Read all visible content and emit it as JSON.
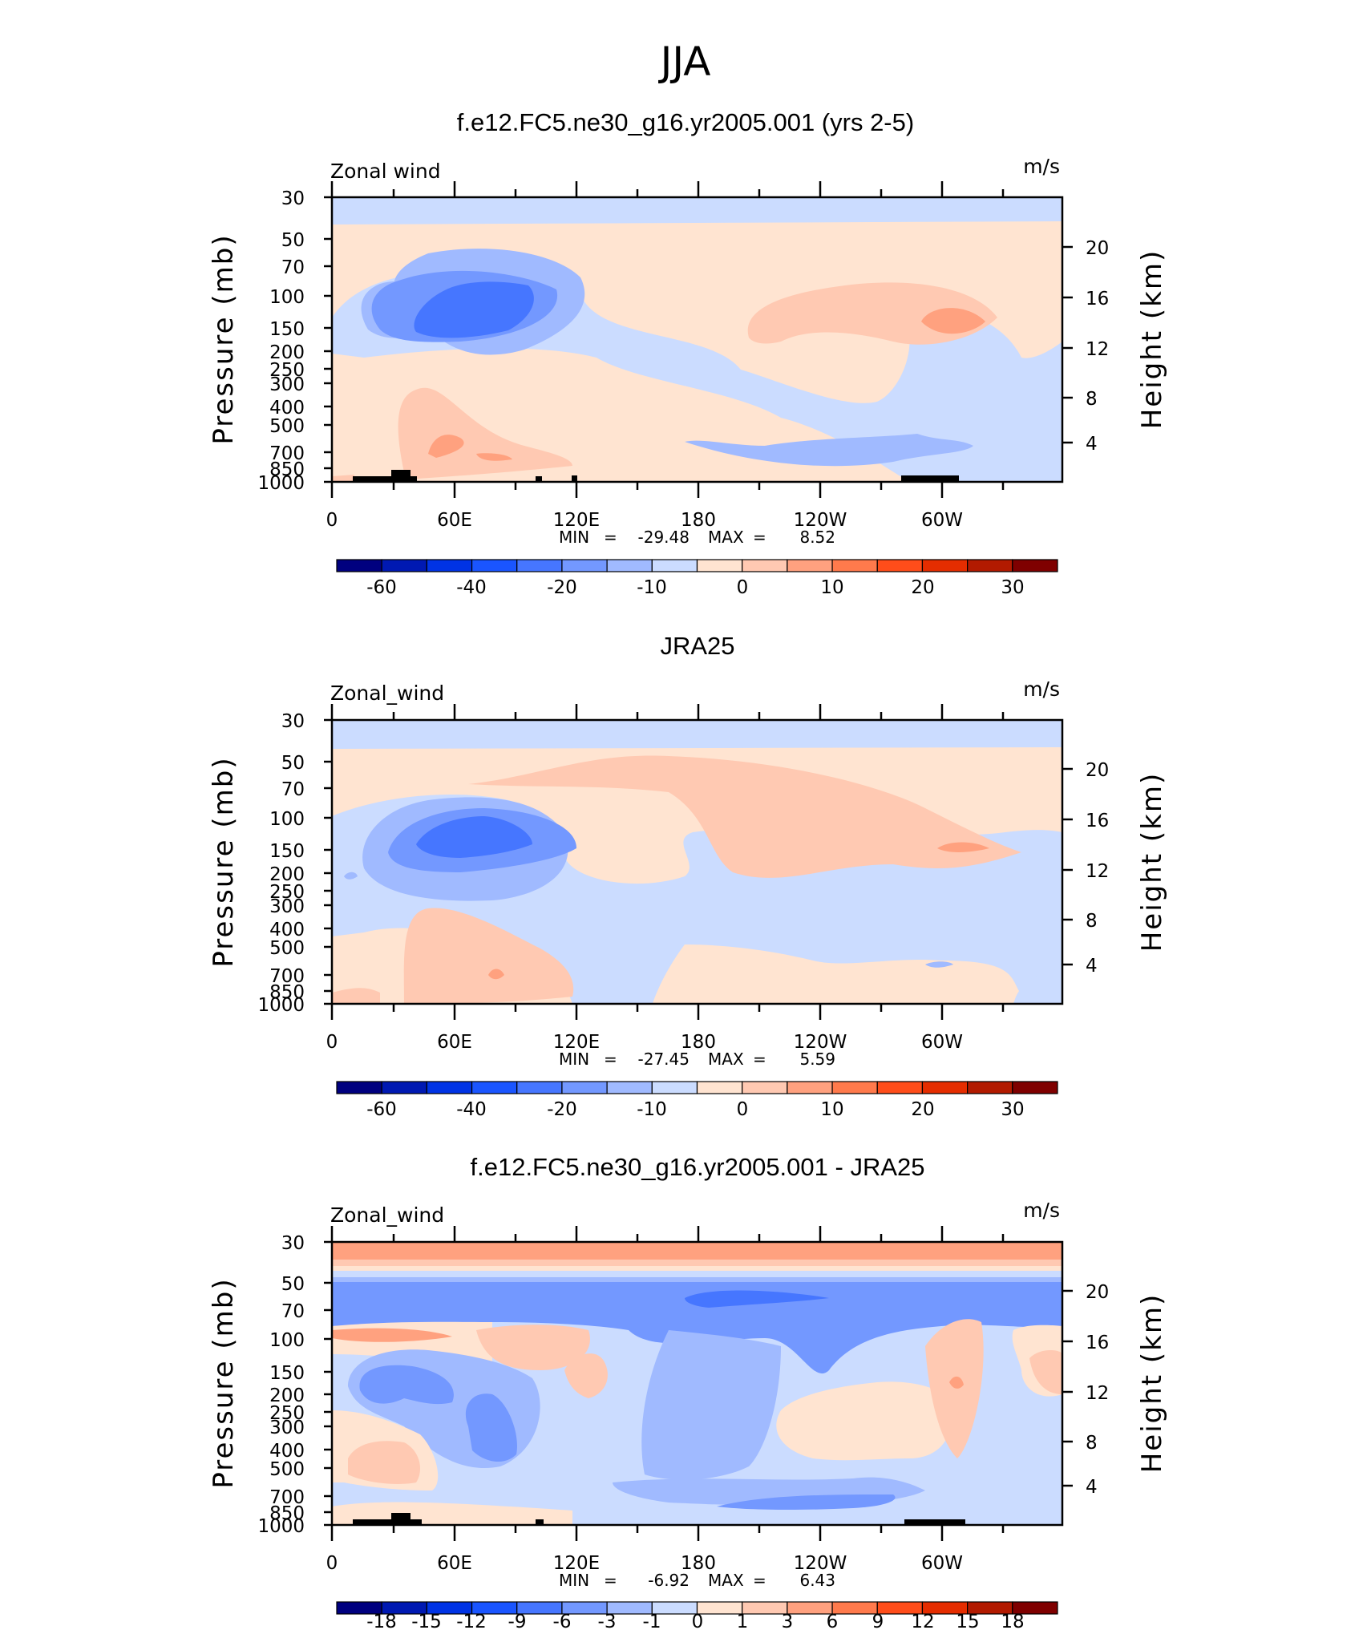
{
  "page_title": "JJA",
  "colors": {
    "main": [
      "#00007f",
      "#0019b2",
      "#0033e5",
      "#1a55ff",
      "#4676ff",
      "#7398ff",
      "#a0baff",
      "#cbdcff",
      "#ffe4d1",
      "#ffc9b2",
      "#ffa17f",
      "#ff7a4c",
      "#ff4d1a",
      "#e52d00",
      "#b21a00",
      "#7f0000"
    ],
    "diff": [
      "#00007f",
      "#0019b2",
      "#0033e5",
      "#1a55ff",
      "#4676ff",
      "#7398ff",
      "#a0baff",
      "#cbdcff",
      "#ffe4d1",
      "#ffc9b2",
      "#ffa17f",
      "#ff7a4c",
      "#ff4d1a",
      "#e52d00",
      "#b21a00",
      "#7f0000"
    ]
  },
  "chart_data": [
    {
      "type": "contour",
      "title": "f.e12.FC5.ne30_g16.yr2005.001 (yrs 2-5)",
      "label_left": "Zonal wind",
      "label_right": "m/s",
      "ylabel": "Pressure (mb)",
      "ylabel2": "Height (km)",
      "y_ticks": [
        "30",
        "50",
        "70",
        "100",
        "150",
        "200",
        "250",
        "300",
        "400",
        "500",
        "700",
        "850",
        "1000"
      ],
      "y2_ticks": [
        "20",
        "16",
        "12",
        "8",
        "4"
      ],
      "x_ticks": [
        "0",
        "60E",
        "120E",
        "180",
        "120W",
        "60W"
      ],
      "min_label": "MIN",
      "min_value": "-29.48",
      "max_label": "MAX",
      "max_value": "8.52",
      "colorbar_labels": [
        "-60",
        "-40",
        "-20",
        "-10",
        "0",
        "10",
        "20",
        "30"
      ]
    },
    {
      "type": "contour",
      "title": "JRA25",
      "label_left": "Zonal_wind",
      "label_right": "m/s",
      "ylabel": "Pressure (mb)",
      "ylabel2": "Height (km)",
      "y_ticks": [
        "30",
        "50",
        "70",
        "100",
        "150",
        "200",
        "250",
        "300",
        "400",
        "500",
        "700",
        "850",
        "1000"
      ],
      "y2_ticks": [
        "20",
        "16",
        "12",
        "8",
        "4"
      ],
      "x_ticks": [
        "0",
        "60E",
        "120E",
        "180",
        "120W",
        "60W"
      ],
      "min_label": "MIN",
      "min_value": "-27.45",
      "max_label": "MAX",
      "max_value": "5.59",
      "colorbar_labels": [
        "-60",
        "-40",
        "-20",
        "-10",
        "0",
        "10",
        "20",
        "30"
      ]
    },
    {
      "type": "contour",
      "title": "f.e12.FC5.ne30_g16.yr2005.001 - JRA25",
      "label_left": "Zonal_wind",
      "label_right": "m/s",
      "ylabel": "Pressure (mb)",
      "ylabel2": "Height (km)",
      "y_ticks": [
        "30",
        "50",
        "70",
        "100",
        "150",
        "200",
        "250",
        "300",
        "400",
        "500",
        "700",
        "850",
        "1000"
      ],
      "y2_ticks": [
        "20",
        "16",
        "12",
        "8",
        "4"
      ],
      "x_ticks": [
        "0",
        "60E",
        "120E",
        "180",
        "120W",
        "60W"
      ],
      "min_label": "MIN",
      "min_value": "-6.92",
      "max_label": "MAX",
      "max_value": "6.43",
      "colorbar_labels": [
        "-18",
        "-15",
        "-12",
        "-9",
        "-6",
        "-3",
        "-1",
        "0",
        "1",
        "3",
        "6",
        "9",
        "12",
        "15",
        "18"
      ]
    }
  ]
}
